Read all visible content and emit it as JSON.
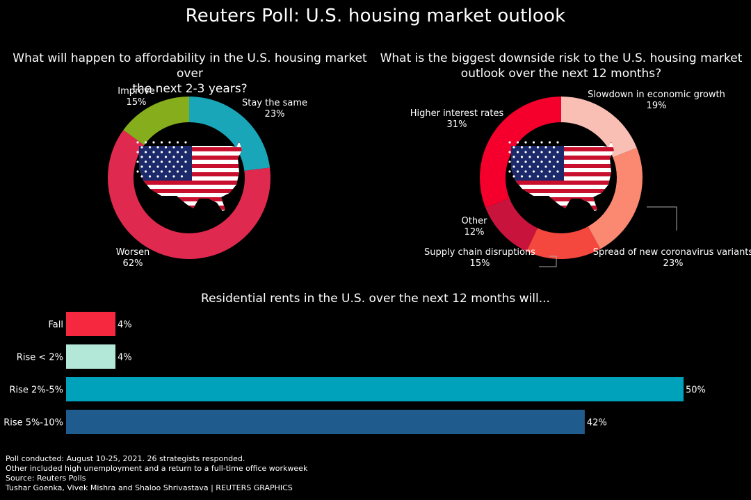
{
  "title": "Reuters Poll: U.S. housing market outlook",
  "chart_data": [
    {
      "type": "pie",
      "title": "What will happen to affordability in the U.S. housing market over the next 2-3 years?",
      "title_lines": [
        "What will happen to affordability in the U.S. housing market over",
        "the next 2-3 years?"
      ],
      "slices": [
        {
          "label": "Stay the same",
          "value": 23,
          "value_label": "23%",
          "color": "#18a6b8"
        },
        {
          "label": "Worsen",
          "value": 62,
          "value_label": "62%",
          "color": "#e0294f"
        },
        {
          "label": "Improve",
          "value": 15,
          "value_label": "15%",
          "color": "#86ad1c"
        }
      ]
    },
    {
      "type": "pie",
      "title": "What is the biggest downside risk to the U.S. housing market outlook over the next 12 months?",
      "title_lines": [
        "What is the biggest downside risk to the U.S. housing market",
        "outlook over the next 12 months?"
      ],
      "slices": [
        {
          "label": "Slowdown in economic growth",
          "value": 19,
          "value_label": "19%",
          "color": "#f9bfb5"
        },
        {
          "label": "Spread of new coronavirus variants",
          "value": 23,
          "value_label": "23%",
          "color": "#fb8870"
        },
        {
          "label": "Supply chain disruptions",
          "value": 15,
          "value_label": "15%",
          "color": "#f4473d"
        },
        {
          "label": "Other",
          "value": 12,
          "value_label": "12%",
          "color": "#c8143c"
        },
        {
          "label": "Higher interest rates",
          "value": 31,
          "value_label": "31%",
          "color": "#f5002c"
        }
      ]
    },
    {
      "type": "bar",
      "orientation": "horizontal",
      "title": "Residential rents in the U.S. over the next 12 months will...",
      "categories": [
        "Fall",
        "Rise < 2%",
        "Rise 2%-5%",
        "Rise 5%-10%"
      ],
      "values": [
        4,
        4,
        50,
        42
      ],
      "value_labels": [
        "4%",
        "4%",
        "50%",
        "42%"
      ],
      "colors": [
        "#f5283f",
        "#b3e7d8",
        "#00a1bb",
        "#1f5b8c"
      ],
      "xlim": [
        0,
        50
      ],
      "grid": false
    }
  ],
  "footer": {
    "lines": [
      "Poll conducted: August 10-25, 2021. 26 strategists responded.",
      "Other included high unemployment and a return to a full-time office workweek",
      "Source: Reuters Polls",
      "Tushar Goenka, Vivek Mishra and Shaloo Shrivastava | REUTERS GRAPHICS"
    ]
  }
}
